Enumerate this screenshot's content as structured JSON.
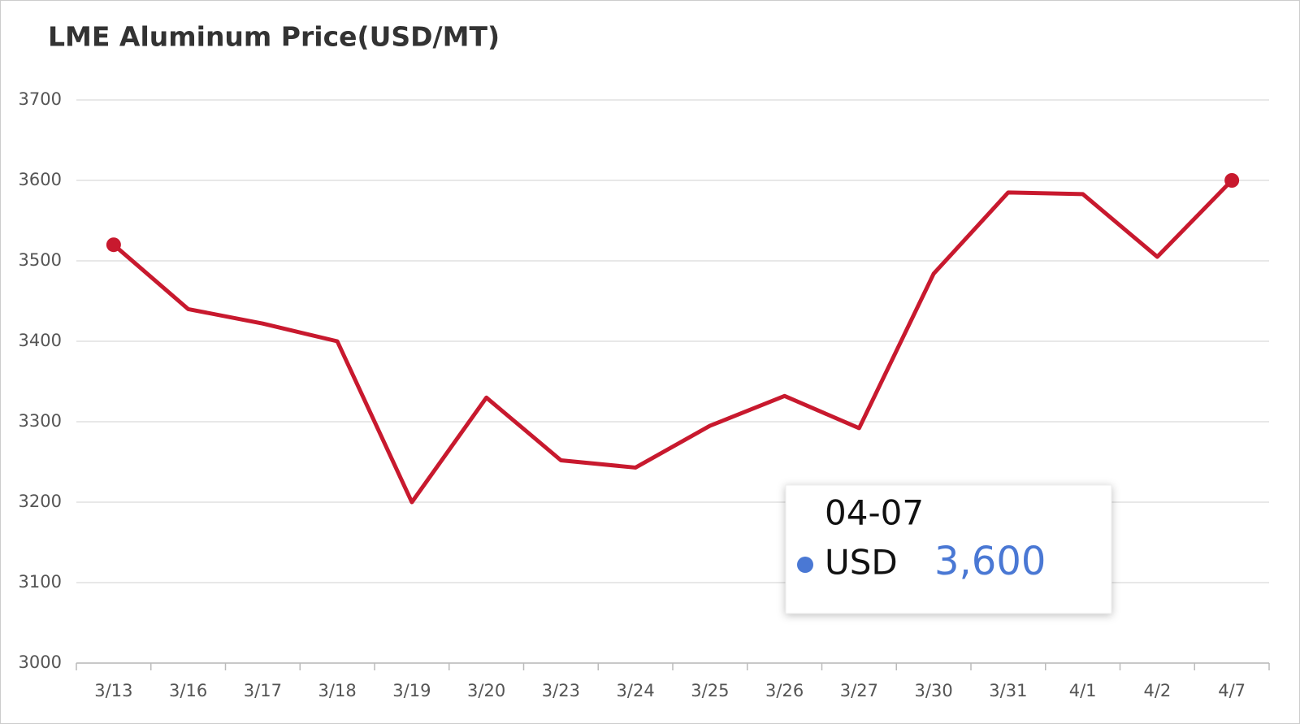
{
  "chart_data": {
    "type": "line",
    "title": "LME Aluminum Price(USD/MT)",
    "categories": [
      "3/13",
      "3/16",
      "3/17",
      "3/18",
      "3/19",
      "3/20",
      "3/23",
      "3/24",
      "3/25",
      "3/26",
      "3/27",
      "3/30",
      "3/31",
      "4/1",
      "4/2",
      "4/7"
    ],
    "series": [
      {
        "name": "USD",
        "color": "#c8192e",
        "values": [
          3520,
          3440,
          3422,
          3400,
          3200,
          3330,
          3252,
          3243,
          3295,
          3332,
          3292,
          3484,
          3585,
          3583,
          3505,
          3600
        ]
      }
    ],
    "ylim": [
      3000,
      3700
    ],
    "yticks": [
      3000,
      3100,
      3200,
      3300,
      3400,
      3500,
      3600,
      3700
    ],
    "grid": true,
    "tooltip": {
      "date": "04-07",
      "name": "USD",
      "value_label": "3,600",
      "marker_color": "#4a78d4",
      "value_color": "#4a78d4"
    }
  }
}
